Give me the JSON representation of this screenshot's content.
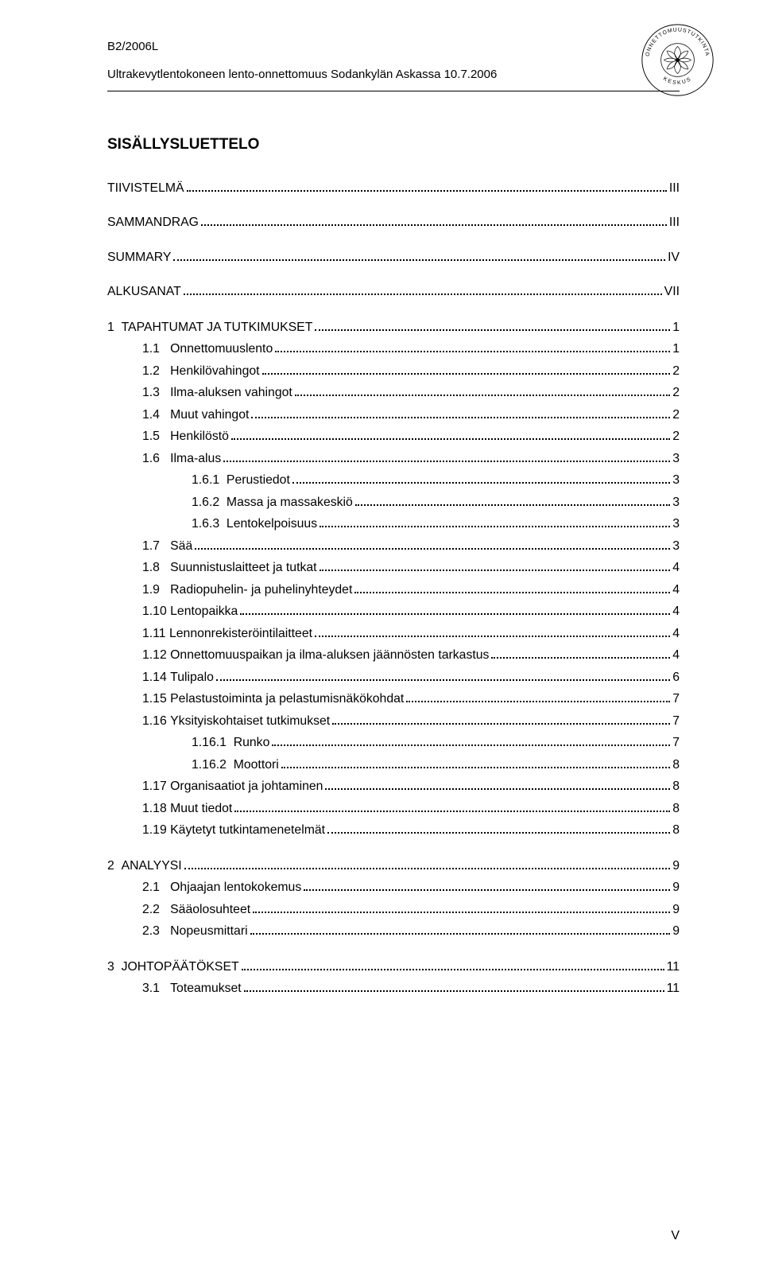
{
  "header": {
    "code": "B2/2006L",
    "subtitle": "Ultrakevytlentokoneen lento-onnettomuus Sodankylän Askassa 10.7.2006"
  },
  "seal": {
    "outer_text_top": "ONNETTOMUUSTUTKINTA",
    "outer_text_bottom": "KESKUS"
  },
  "title": "SISÄLLYSLUETTELO",
  "page_number": "V",
  "toc_top": [
    {
      "label": "TIIVISTELMÄ",
      "page": "III"
    },
    {
      "label": "SAMMANDRAG",
      "page": "III"
    },
    {
      "label": "SUMMARY",
      "page": "IV"
    },
    {
      "label": "ALKUSANAT",
      "page": "VII"
    }
  ],
  "sections": [
    {
      "num": "1",
      "label": "TAPAHTUMAT JA TUTKIMUKSET",
      "page": "1",
      "items": [
        {
          "level": 2,
          "num": "1.1",
          "label": "Onnettomuuslento",
          "page": "1"
        },
        {
          "level": 2,
          "num": "1.2",
          "label": "Henkilövahingot",
          "page": "2"
        },
        {
          "level": 2,
          "num": "1.3",
          "label": "Ilma-aluksen vahingot",
          "page": "2"
        },
        {
          "level": 2,
          "num": "1.4",
          "label": "Muut vahingot",
          "page": "2"
        },
        {
          "level": 2,
          "num": "1.5",
          "label": "Henkilöstö",
          "page": "2"
        },
        {
          "level": 2,
          "num": "1.6",
          "label": "Ilma-alus",
          "page": "3"
        },
        {
          "level": 3,
          "num": "1.6.1",
          "label": "Perustiedot",
          "page": "3"
        },
        {
          "level": 3,
          "num": "1.6.2",
          "label": "Massa ja massakeskiö",
          "page": "3"
        },
        {
          "level": 3,
          "num": "1.6.3",
          "label": "Lentokelpoisuus",
          "page": "3"
        },
        {
          "level": 2,
          "num": "1.7",
          "label": "Sää",
          "page": "3"
        },
        {
          "level": 2,
          "num": "1.8",
          "label": "Suunnistuslaitteet ja tutkat",
          "page": "4"
        },
        {
          "level": 2,
          "num": "1.9",
          "label": "Radiopuhelin- ja puhelinyhteydet",
          "page": "4"
        },
        {
          "level": 2,
          "num": "1.10",
          "label": "Lentopaikka",
          "page": "4"
        },
        {
          "level": 2,
          "num": "1.11",
          "label": "Lennonrekisteröintilaitteet",
          "page": "4"
        },
        {
          "level": 2,
          "num": "1.12",
          "label": "Onnettomuuspaikan ja ilma-aluksen jäännösten tarkastus",
          "page": "4"
        },
        {
          "level": 2,
          "num": "1.14",
          "label": "Tulipalo",
          "page": "6"
        },
        {
          "level": 2,
          "num": "1.15",
          "label": "Pelastustoiminta ja pelastumisnäkökohdat",
          "page": "7"
        },
        {
          "level": 2,
          "num": "1.16",
          "label": "Yksityiskohtaiset tutkimukset",
          "page": "7"
        },
        {
          "level": 3,
          "num": "1.16.1",
          "label": "Runko",
          "page": "7"
        },
        {
          "level": 3,
          "num": "1.16.2",
          "label": "Moottori",
          "page": "8"
        },
        {
          "level": 2,
          "num": "1.17",
          "label": "Organisaatiot ja johtaminen",
          "page": "8"
        },
        {
          "level": 2,
          "num": "1.18",
          "label": "Muut tiedot",
          "page": "8"
        },
        {
          "level": 2,
          "num": "1.19",
          "label": "Käytetyt tutkintamenetelmät",
          "page": "8"
        }
      ]
    },
    {
      "num": "2",
      "label": "ANALYYSI",
      "page": "9",
      "items": [
        {
          "level": 2,
          "num": "2.1",
          "label": "Ohjaajan lentokokemus",
          "page": "9"
        },
        {
          "level": 2,
          "num": "2.2",
          "label": "Sääolosuhteet",
          "page": "9"
        },
        {
          "level": 2,
          "num": "2.3",
          "label": "Nopeusmittari",
          "page": "9"
        }
      ]
    },
    {
      "num": "3",
      "label": "JOHTOPÄÄTÖKSET",
      "page": "11",
      "items": [
        {
          "level": 2,
          "num": "3.1",
          "label": "Toteamukset",
          "page": "11"
        }
      ]
    }
  ]
}
